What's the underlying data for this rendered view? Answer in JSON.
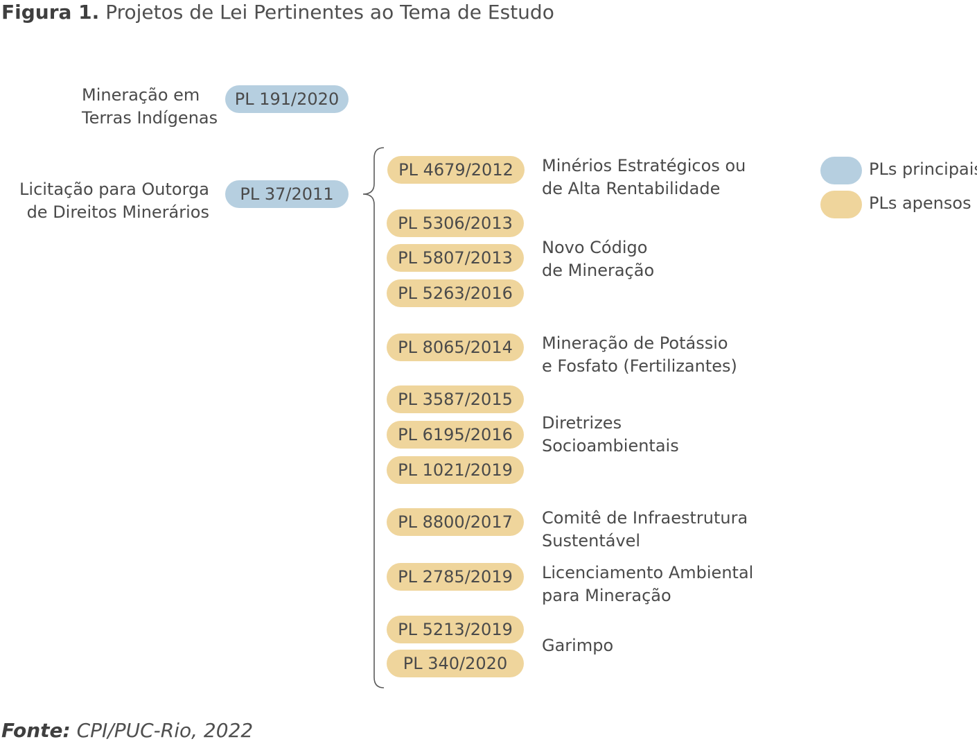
{
  "figure": {
    "label": "Figura 1.",
    "title": "Projetos de Lei Pertinentes ao Tema de Estudo"
  },
  "main_topics": [
    {
      "lines": [
        "Mineração em",
        "Terras Indígenas"
      ],
      "pl": "PL 191/2020"
    },
    {
      "lines": [
        "Licitação para Outorga",
        "de Direitos Minerários"
      ],
      "pl": "PL 37/2011"
    }
  ],
  "attached_pls": [
    "PL 4679/2012",
    "PL 5306/2013",
    "PL 5807/2013",
    "PL 5263/2016",
    "PL 8065/2014",
    "PL 3587/2015",
    "PL 6195/2016",
    "PL 1021/2019",
    "PL 8800/2017",
    "PL 2785/2019",
    "PL 5213/2019",
    "PL 340/2020"
  ],
  "attached_groups": [
    {
      "lines": [
        "Minérios Estratégicos ou",
        "de Alta Rentabilidade"
      ]
    },
    {
      "lines": [
        "Novo Código",
        "de Mineração"
      ]
    },
    {
      "lines": [
        "Mineração de Potássio",
        "e Fosfato (Fertilizantes)"
      ]
    },
    {
      "lines": [
        "Diretrizes",
        "Socioambientais"
      ]
    },
    {
      "lines": [
        "Comitê de Infraestrutura",
        "Sustentável"
      ]
    },
    {
      "lines": [
        "Licenciamento Ambiental",
        "para Mineração"
      ]
    },
    {
      "lines": [
        "Garimpo"
      ]
    }
  ],
  "legend": {
    "main_label": "PLs principais",
    "attached_label": "PLs apensos"
  },
  "colors": {
    "main": "#b6cfe0",
    "attached": "#efd59c",
    "bracket": "#5a5a5a"
  },
  "source": {
    "label": "Fonte:",
    "text": "CPI/PUC-Rio, 2022"
  }
}
